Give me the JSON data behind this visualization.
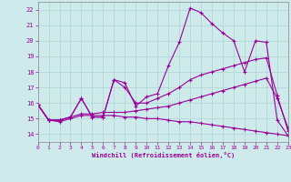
{
  "xlabel": "Windchill (Refroidissement éolien,°C)",
  "background_color": "#ceeaea",
  "grid_color": "#aed4d4",
  "line_color": "#990099",
  "xlim": [
    0,
    23
  ],
  "ylim": [
    13.5,
    22.5
  ],
  "xticks": [
    0,
    1,
    2,
    3,
    4,
    5,
    6,
    7,
    8,
    9,
    10,
    11,
    12,
    13,
    14,
    15,
    16,
    17,
    18,
    19,
    20,
    21,
    22,
    23
  ],
  "yticks": [
    14,
    15,
    16,
    17,
    18,
    19,
    20,
    21,
    22
  ],
  "line1_x": [
    0,
    1,
    2,
    3,
    4,
    5,
    6,
    7,
    8,
    9,
    10,
    11,
    12,
    13,
    14,
    15,
    16,
    17,
    18,
    19,
    20,
    21,
    22,
    23
  ],
  "line1_y": [
    15.9,
    14.9,
    14.9,
    15.1,
    16.3,
    15.1,
    15.1,
    17.5,
    17.3,
    15.8,
    16.4,
    16.6,
    18.4,
    19.9,
    22.1,
    21.8,
    21.1,
    20.5,
    20.0,
    18.0,
    20.0,
    19.9,
    14.9,
    13.9
  ],
  "line2_x": [
    0,
    1,
    2,
    3,
    4,
    5,
    6,
    7,
    8,
    9,
    10,
    11,
    12,
    13,
    14,
    15,
    16,
    17,
    18,
    19,
    20,
    21,
    22,
    23
  ],
  "line2_y": [
    15.9,
    14.9,
    14.9,
    15.1,
    16.3,
    15.1,
    15.1,
    17.5,
    17.0,
    16.0,
    16.0,
    16.3,
    16.6,
    17.0,
    17.5,
    17.8,
    18.0,
    18.2,
    18.4,
    18.6,
    18.8,
    18.9,
    16.5,
    14.2
  ],
  "line3_x": [
    0,
    1,
    2,
    3,
    4,
    5,
    6,
    7,
    8,
    9,
    10,
    11,
    12,
    13,
    14,
    15,
    16,
    17,
    18,
    19,
    20,
    21,
    22,
    23
  ],
  "line3_y": [
    15.9,
    14.9,
    14.8,
    15.0,
    15.2,
    15.2,
    15.2,
    15.2,
    15.1,
    15.1,
    15.0,
    15.0,
    14.9,
    14.8,
    14.8,
    14.7,
    14.6,
    14.5,
    14.4,
    14.3,
    14.2,
    14.1,
    14.0,
    13.9
  ],
  "line4_x": [
    0,
    1,
    2,
    3,
    4,
    5,
    6,
    7,
    8,
    9,
    10,
    11,
    12,
    13,
    14,
    15,
    16,
    17,
    18,
    19,
    20,
    21,
    22,
    23
  ],
  "line4_y": [
    15.9,
    14.9,
    14.9,
    15.1,
    15.3,
    15.3,
    15.4,
    15.4,
    15.4,
    15.5,
    15.6,
    15.7,
    15.8,
    16.0,
    16.2,
    16.4,
    16.6,
    16.8,
    17.0,
    17.2,
    17.4,
    17.6,
    16.3,
    14.4
  ]
}
